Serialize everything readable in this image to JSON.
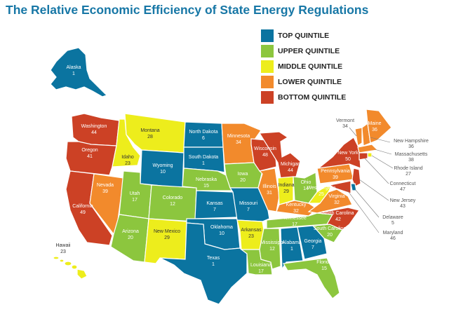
{
  "title": "The Relative Economic Efficiency of State Energy Regulations",
  "colors": {
    "top": "#0b74a0",
    "upper": "#8cc63e",
    "middle": "#eded1c",
    "lower": "#f28a2c",
    "bottom": "#cc4125"
  },
  "legend": [
    {
      "label": "TOP QUINTILE",
      "tier": "top"
    },
    {
      "label": "UPPER QUINTILE",
      "tier": "upper"
    },
    {
      "label": "MIDDLE QUINTILE",
      "tier": "middle"
    },
    {
      "label": "LOWER QUINTILE",
      "tier": "lower"
    },
    {
      "label": "BOTTOM QUINTILE",
      "tier": "bottom"
    }
  ],
  "states": {
    "alaska": {
      "name": "Alaska",
      "rank": "1",
      "tier": "top"
    },
    "hawaii": {
      "name": "Hawaii",
      "rank": "23",
      "tier": "middle"
    },
    "washington": {
      "name": "Washington",
      "rank": "44",
      "tier": "bottom"
    },
    "oregon": {
      "name": "Oregon",
      "rank": "41",
      "tier": "bottom"
    },
    "california": {
      "name": "California",
      "rank": "49",
      "tier": "bottom"
    },
    "nevada": {
      "name": "Nevada",
      "rank": "39",
      "tier": "lower"
    },
    "idaho": {
      "name": "Idaho",
      "rank": "23",
      "tier": "middle"
    },
    "montana": {
      "name": "Montana",
      "rank": "28",
      "tier": "middle"
    },
    "wyoming": {
      "name": "Wyoming",
      "rank": "10",
      "tier": "top"
    },
    "utah": {
      "name": "Utah",
      "rank": "17",
      "tier": "upper"
    },
    "colorado": {
      "name": "Colorado",
      "rank": "12",
      "tier": "upper"
    },
    "arizona": {
      "name": "Arizona",
      "rank": "20",
      "tier": "upper"
    },
    "new_mexico": {
      "name": "New Mexico",
      "rank": "29",
      "tier": "middle"
    },
    "north_dakota": {
      "name": "North Dakota",
      "rank": "6",
      "tier": "top"
    },
    "south_dakota": {
      "name": "South Dakota",
      "rank": "1",
      "tier": "top"
    },
    "nebraska": {
      "name": "Nebraska",
      "rank": "15",
      "tier": "upper"
    },
    "kansas": {
      "name": "Kansas",
      "rank": "7",
      "tier": "top"
    },
    "oklahoma": {
      "name": "Oklahoma",
      "rank": "10",
      "tier": "top"
    },
    "texas": {
      "name": "Texas",
      "rank": "1",
      "tier": "top"
    },
    "minnesota": {
      "name": "Minnesota",
      "rank": "34",
      "tier": "lower"
    },
    "iowa": {
      "name": "Iowa",
      "rank": "20",
      "tier": "upper"
    },
    "missouri": {
      "name": "Missouri",
      "rank": "7",
      "tier": "top"
    },
    "arkansas": {
      "name": "Arkansas",
      "rank": "23",
      "tier": "middle"
    },
    "louisiana": {
      "name": "Louisiana",
      "rank": "17",
      "tier": "upper"
    },
    "wisconsin": {
      "name": "Wisconsin",
      "rank": "48",
      "tier": "bottom"
    },
    "illinois": {
      "name": "Illinois",
      "rank": "31",
      "tier": "lower"
    },
    "michigan": {
      "name": "Michigan",
      "rank": "44",
      "tier": "bottom"
    },
    "indiana": {
      "name": "Indiana",
      "rank": "29",
      "tier": "middle"
    },
    "ohio": {
      "name": "Ohio",
      "rank": "14",
      "tier": "upper"
    },
    "kentucky": {
      "name": "Kentucky",
      "rank": "32",
      "tier": "lower"
    },
    "tennessee": {
      "name": "Tennessee",
      "rank": "17",
      "tier": "upper"
    },
    "mississippi": {
      "name": "Mississippi",
      "rank": "12",
      "tier": "upper"
    },
    "alabama": {
      "name": "Alabama",
      "rank": "1",
      "tier": "top"
    },
    "georgia": {
      "name": "Georgia",
      "rank": "7",
      "tier": "top"
    },
    "florida": {
      "name": "Florida",
      "rank": "15",
      "tier": "upper"
    },
    "south_carolina": {
      "name": "South Carolina",
      "rank": "20",
      "tier": "upper"
    },
    "north_carolina": {
      "name": "North Carolina",
      "rank": "42",
      "tier": "bottom"
    },
    "virginia": {
      "name": "Virginia",
      "rank": "32",
      "tier": "lower"
    },
    "west_virginia": {
      "name": "West Virginia",
      "rank": "25",
      "tier": "middle"
    },
    "pennsylvania": {
      "name": "Pennsylvania",
      "rank": "39",
      "tier": "lower"
    },
    "new_york": {
      "name": "New York",
      "rank": "50",
      "tier": "bottom"
    },
    "vermont": {
      "name": "Vermont",
      "rank": "34",
      "tier": "lower"
    },
    "new_hampshire": {
      "name": "New Hampshire",
      "rank": "36",
      "tier": "lower"
    },
    "maine": {
      "name": "Maine",
      "rank": "36",
      "tier": "lower"
    },
    "massachusetts": {
      "name": "Massachusetts",
      "rank": "38",
      "tier": "lower"
    },
    "rhode_island": {
      "name": "Rhode Island",
      "rank": "27",
      "tier": "middle"
    },
    "connecticut": {
      "name": "Connecticut",
      "rank": "47",
      "tier": "bottom"
    },
    "new_jersey": {
      "name": "New Jersey",
      "rank": "43",
      "tier": "bottom"
    },
    "delaware": {
      "name": "Delaware",
      "rank": "5",
      "tier": "top"
    },
    "maryland": {
      "name": "Maryland",
      "rank": "46",
      "tier": "bottom"
    }
  }
}
